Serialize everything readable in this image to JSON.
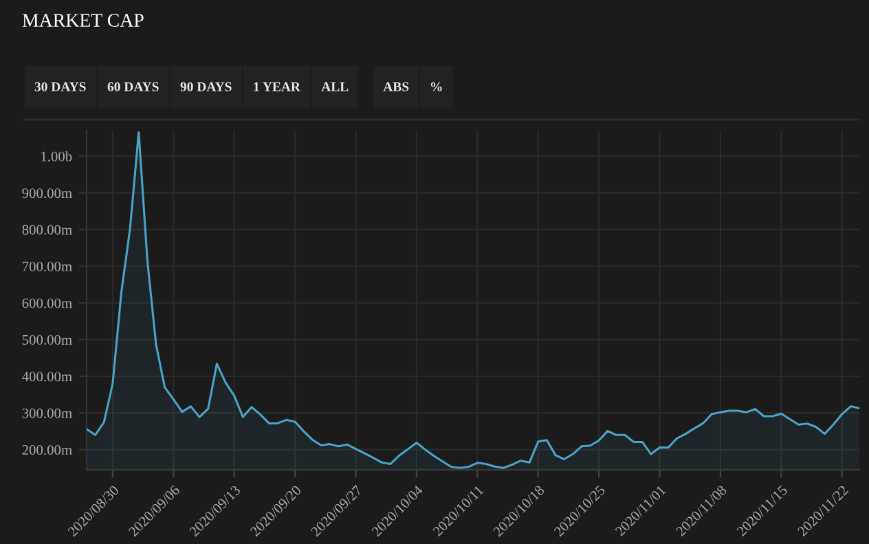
{
  "chart_data": {
    "type": "area",
    "title": "MARKET CAP",
    "annotations": [
      "30 DAYS",
      "60 DAYS",
      "90 DAYS",
      "1 YEAR",
      "ALL",
      "ABS",
      "%"
    ],
    "x": [
      "2020-08-27",
      "2020-08-28",
      "2020-08-29",
      "2020-08-30",
      "2020-08-31",
      "2020-09-01",
      "2020-09-02",
      "2020-09-03",
      "2020-09-04",
      "2020-09-05",
      "2020-09-06",
      "2020-09-07",
      "2020-09-08",
      "2020-09-09",
      "2020-09-10",
      "2020-09-11",
      "2020-09-12",
      "2020-09-13",
      "2020-09-14",
      "2020-09-15",
      "2020-09-16",
      "2020-09-17",
      "2020-09-18",
      "2020-09-19",
      "2020-09-20",
      "2020-09-21",
      "2020-09-22",
      "2020-09-23",
      "2020-09-24",
      "2020-09-25",
      "2020-09-26",
      "2020-09-27",
      "2020-09-28",
      "2020-09-29",
      "2020-09-30",
      "2020-10-01",
      "2020-10-02",
      "2020-10-03",
      "2020-10-04",
      "2020-10-05",
      "2020-10-06",
      "2020-10-07",
      "2020-10-08",
      "2020-10-09",
      "2020-10-10",
      "2020-10-11",
      "2020-10-12",
      "2020-10-13",
      "2020-10-14",
      "2020-10-15",
      "2020-10-16",
      "2020-10-17",
      "2020-10-18",
      "2020-10-19",
      "2020-10-20",
      "2020-10-21",
      "2020-10-22",
      "2020-10-23",
      "2020-10-24",
      "2020-10-25",
      "2020-10-26",
      "2020-10-27",
      "2020-10-28",
      "2020-10-29",
      "2020-10-30",
      "2020-10-31",
      "2020-11-01",
      "2020-11-02",
      "2020-11-03",
      "2020-11-04",
      "2020-11-05",
      "2020-11-06",
      "2020-11-07",
      "2020-11-08",
      "2020-11-09",
      "2020-11-10",
      "2020-11-11",
      "2020-11-12",
      "2020-11-13",
      "2020-11-14",
      "2020-11-15",
      "2020-11-16",
      "2020-11-17",
      "2020-11-18",
      "2020-11-19",
      "2020-11-20",
      "2020-11-21",
      "2020-11-22",
      "2020-11-23",
      "2020-11-24"
    ],
    "series": [
      {
        "color": "#4aa3c8",
        "values": [
          256000000,
          240000000,
          275000000,
          380000000,
          629000000,
          802000000,
          1065000000,
          715000000,
          486000000,
          370000000,
          337000000,
          303000000,
          318000000,
          289000000,
          312000000,
          434000000,
          383000000,
          347000000,
          289000000,
          316000000,
          296000000,
          272000000,
          272000000,
          281000000,
          276000000,
          250000000,
          227000000,
          212000000,
          215000000,
          209000000,
          214000000,
          202000000,
          190000000,
          178000000,
          165000000,
          161000000,
          184000000,
          201000000,
          219000000,
          200000000,
          183000000,
          168000000,
          153000000,
          150000000,
          153000000,
          164000000,
          161000000,
          154000000,
          150000000,
          159000000,
          170000000,
          165000000,
          222000000,
          226000000,
          185000000,
          174000000,
          188000000,
          209000000,
          211000000,
          225000000,
          251000000,
          240000000,
          240000000,
          221000000,
          221000000,
          188000000,
          206000000,
          206000000,
          231000000,
          243000000,
          258000000,
          272000000,
          297000000,
          302000000,
          306000000,
          306000000,
          302000000,
          311000000,
          291000000,
          291000000,
          298000000,
          283000000,
          268000000,
          271000000,
          262000000,
          243000000,
          268000000,
          297000000,
          318000000,
          313000000
        ]
      }
    ],
    "xlim": [
      "2020-08-27",
      "2020-11-24"
    ],
    "xticks": [
      {
        "value": "2020-08-30",
        "label": "2020/08/30"
      },
      {
        "value": "2020-09-06",
        "label": "2020/09/06"
      },
      {
        "value": "2020-09-13",
        "label": "2020/09/13"
      },
      {
        "value": "2020-09-20",
        "label": "2020/09/20"
      },
      {
        "value": "2020-09-27",
        "label": "2020/09/27"
      },
      {
        "value": "2020-10-04",
        "label": "2020/10/04"
      },
      {
        "value": "2020-10-11",
        "label": "2020/10/11"
      },
      {
        "value": "2020-10-18",
        "label": "2020/10/18"
      },
      {
        "value": "2020-10-25",
        "label": "2020/10/25"
      },
      {
        "value": "2020-11-01",
        "label": "2020/11/01"
      },
      {
        "value": "2020-11-08",
        "label": "2020/11/08"
      },
      {
        "value": "2020-11-15",
        "label": "2020/11/15"
      },
      {
        "value": "2020-11-22",
        "label": "2020/11/22"
      }
    ],
    "ylim": [
      145000000,
      1070000000
    ],
    "yticks": [
      {
        "value": 200000000,
        "label": "200.00m"
      },
      {
        "value": 300000000,
        "label": "300.00m"
      },
      {
        "value": 400000000,
        "label": "400.00m"
      },
      {
        "value": 500000000,
        "label": "500.00m"
      },
      {
        "value": 600000000,
        "label": "600.00m"
      },
      {
        "value": 700000000,
        "label": "700.00m"
      },
      {
        "value": 800000000,
        "label": "800.00m"
      },
      {
        "value": 900000000,
        "label": "900.00m"
      },
      {
        "value": 1000000000,
        "label": "1.00b"
      }
    ],
    "grid": true,
    "line_style": "solid",
    "marker": "none"
  }
}
